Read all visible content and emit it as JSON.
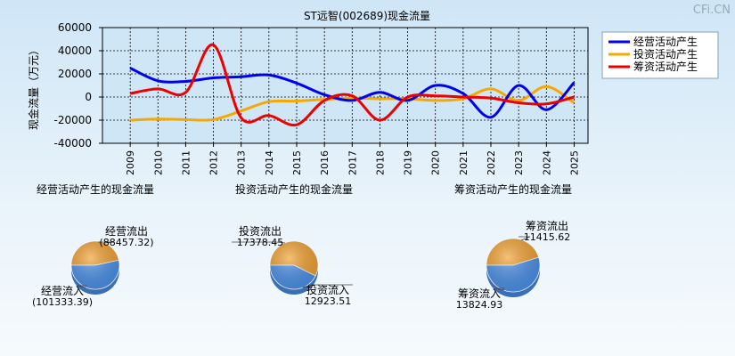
{
  "watermark": "CFi.CN",
  "chart_data": [
    {
      "type": "line",
      "title": "ST远智(002689)现金流量",
      "ylabel": "现金流量（万元）",
      "xlabel": "",
      "x": [
        "2009",
        "2010",
        "2011",
        "2012",
        "2013",
        "2014",
        "2015",
        "2016",
        "2017",
        "2018",
        "2019",
        "2020",
        "2021",
        "2022",
        "2023",
        "2024",
        "2025"
      ],
      "ylim": [
        -40000,
        60000
      ],
      "yticks": [
        60000,
        40000,
        20000,
        0,
        -20000,
        -40000
      ],
      "grid": true,
      "legend_position": "right",
      "series": [
        {
          "name": "经营活动产生",
          "color": "#0000ee",
          "values": [
            25000,
            14000,
            13500,
            16500,
            17500,
            19000,
            12000,
            2000,
            -3000,
            4000,
            -3000,
            10000,
            3000,
            -17500,
            10000,
            -11000,
            12500
          ]
        },
        {
          "name": "投资活动产生",
          "color": "#f5a800",
          "values": [
            -20000,
            -19000,
            -19500,
            -19500,
            -12000,
            -4000,
            -3500,
            -2000,
            -1000,
            -1500,
            -1500,
            -3000,
            -1500,
            7000,
            -3000,
            9000,
            -5000
          ]
        },
        {
          "name": "筹资活动产生",
          "color": "#ee0000",
          "values": [
            3000,
            7000,
            4000,
            45000,
            -18000,
            -16000,
            -24000,
            -3000,
            1000,
            -20000,
            0,
            1000,
            0,
            -1000,
            -5000,
            -6000,
            0
          ]
        }
      ]
    },
    {
      "type": "pie",
      "title": "经营活动产生的现金流量",
      "slices": [
        {
          "label": "经营流出",
          "value_text": "(88457.32)",
          "value": 88457.32,
          "color": "#f0a030"
        },
        {
          "label": "经营流入",
          "value_text": "(101333.39)",
          "value": 101333.39,
          "color": "#4a90e8"
        }
      ]
    },
    {
      "type": "pie",
      "title": "投资活动产生的现金流量",
      "slices": [
        {
          "label": "投资流出",
          "value_text": "17378.45",
          "value": 17378.45,
          "color": "#f0a030"
        },
        {
          "label": "投资流入",
          "value_text": "12923.51",
          "value": 12923.51,
          "color": "#4a90e8"
        }
      ]
    },
    {
      "type": "pie",
      "title": "筹资活动产生的现金流量",
      "slices": [
        {
          "label": "筹资流出",
          "value_text": "11415.62",
          "value": 11415.62,
          "color": "#f0a030"
        },
        {
          "label": "筹资流入",
          "value_text": "13824.93",
          "value": 13824.93,
          "color": "#4a90e8"
        }
      ]
    }
  ]
}
